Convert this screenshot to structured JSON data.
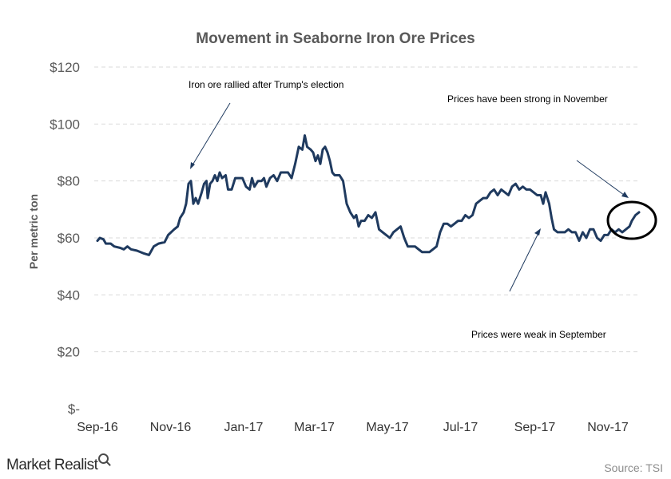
{
  "chart_data": {
    "type": "line",
    "title": "Movement in Seaborne Iron Ore Prices",
    "ylabel": "Per metric ton",
    "xlabel": "",
    "ylim": [
      0,
      120
    ],
    "y_ticks": [
      0,
      20,
      40,
      60,
      80,
      100,
      120
    ],
    "y_tick_labels": [
      "$-",
      "$20",
      "$40",
      "$60",
      "$80",
      "$100",
      "$120"
    ],
    "x_ticks": [
      "2016-09-01",
      "2016-11-01",
      "2017-01-01",
      "2017-03-01",
      "2017-05-01",
      "2017-07-01",
      "2017-09-01",
      "2017-11-01"
    ],
    "x_tick_labels": [
      "Sep-16",
      "Nov-16",
      "Jan-17",
      "Mar-17",
      "May-17",
      "Jul-17",
      "Sep-17",
      "Nov-17"
    ],
    "grid": true,
    "series": [
      {
        "color": "#1f3a5f",
        "points": [
          [
            "2016-09-01",
            59
          ],
          [
            "2016-09-03",
            60
          ],
          [
            "2016-09-06",
            59.5
          ],
          [
            "2016-09-08",
            58
          ],
          [
            "2016-09-12",
            58
          ],
          [
            "2016-09-15",
            57
          ],
          [
            "2016-09-20",
            56.5
          ],
          [
            "2016-09-23",
            56
          ],
          [
            "2016-09-26",
            57
          ],
          [
            "2016-09-29",
            56
          ],
          [
            "2016-10-04",
            55.5
          ],
          [
            "2016-10-10",
            54.5
          ],
          [
            "2016-10-14",
            54
          ],
          [
            "2016-10-18",
            57
          ],
          [
            "2016-10-22",
            58
          ],
          [
            "2016-10-27",
            58.5
          ],
          [
            "2016-10-30",
            61
          ],
          [
            "2016-11-04",
            63
          ],
          [
            "2016-11-07",
            64
          ],
          [
            "2016-11-09",
            67
          ],
          [
            "2016-11-12",
            69
          ],
          [
            "2016-11-14",
            72
          ],
          [
            "2016-11-16",
            79
          ],
          [
            "2016-11-18",
            80
          ],
          [
            "2016-11-20",
            72
          ],
          [
            "2016-11-22",
            74
          ],
          [
            "2016-11-24",
            72
          ],
          [
            "2016-11-27",
            76
          ],
          [
            "2016-11-29",
            79
          ],
          [
            "2016-12-01",
            80
          ],
          [
            "2016-12-02",
            74
          ],
          [
            "2016-12-04",
            79
          ],
          [
            "2016-12-06",
            80
          ],
          [
            "2016-12-08",
            82
          ],
          [
            "2016-12-10",
            80
          ],
          [
            "2016-12-12",
            83
          ],
          [
            "2016-12-14",
            81
          ],
          [
            "2016-12-17",
            82
          ],
          [
            "2016-12-19",
            77
          ],
          [
            "2016-12-22",
            77
          ],
          [
            "2016-12-25",
            81
          ],
          [
            "2016-12-28",
            81
          ],
          [
            "2016-12-31",
            81
          ],
          [
            "2017-01-03",
            78
          ],
          [
            "2017-01-06",
            77
          ],
          [
            "2017-01-08",
            81
          ],
          [
            "2017-01-10",
            78
          ],
          [
            "2017-01-13",
            80
          ],
          [
            "2017-01-16",
            80
          ],
          [
            "2017-01-18",
            81
          ],
          [
            "2017-01-20",
            78
          ],
          [
            "2017-01-23",
            81
          ],
          [
            "2017-01-26",
            82
          ],
          [
            "2017-01-29",
            80
          ],
          [
            "2017-02-01",
            83
          ],
          [
            "2017-02-04",
            83
          ],
          [
            "2017-02-07",
            83
          ],
          [
            "2017-02-10",
            81
          ],
          [
            "2017-02-13",
            86
          ],
          [
            "2017-02-16",
            92
          ],
          [
            "2017-02-19",
            91
          ],
          [
            "2017-02-21",
            96
          ],
          [
            "2017-02-23",
            92
          ],
          [
            "2017-02-26",
            91
          ],
          [
            "2017-02-28",
            90
          ],
          [
            "2017-03-02",
            87
          ],
          [
            "2017-03-04",
            89
          ],
          [
            "2017-03-06",
            86
          ],
          [
            "2017-03-08",
            91
          ],
          [
            "2017-03-10",
            92
          ],
          [
            "2017-03-12",
            90
          ],
          [
            "2017-03-14",
            87
          ],
          [
            "2017-03-16",
            83
          ],
          [
            "2017-03-18",
            82
          ],
          [
            "2017-03-22",
            82
          ],
          [
            "2017-03-25",
            80
          ],
          [
            "2017-03-28",
            72
          ],
          [
            "2017-03-31",
            69
          ],
          [
            "2017-04-03",
            67
          ],
          [
            "2017-04-05",
            68
          ],
          [
            "2017-04-07",
            64
          ],
          [
            "2017-04-09",
            66
          ],
          [
            "2017-04-12",
            66
          ],
          [
            "2017-04-15",
            68
          ],
          [
            "2017-04-18",
            67
          ],
          [
            "2017-04-21",
            69
          ],
          [
            "2017-04-24",
            63
          ],
          [
            "2017-04-27",
            62
          ],
          [
            "2017-04-30",
            61
          ],
          [
            "2017-05-03",
            60
          ],
          [
            "2017-05-06",
            62
          ],
          [
            "2017-05-09",
            63
          ],
          [
            "2017-05-12",
            64
          ],
          [
            "2017-05-15",
            60
          ],
          [
            "2017-05-18",
            57
          ],
          [
            "2017-05-21",
            57
          ],
          [
            "2017-05-24",
            57
          ],
          [
            "2017-05-27",
            56
          ],
          [
            "2017-05-30",
            55
          ],
          [
            "2017-06-02",
            55
          ],
          [
            "2017-06-05",
            55
          ],
          [
            "2017-06-08",
            56
          ],
          [
            "2017-06-11",
            57
          ],
          [
            "2017-06-14",
            62
          ],
          [
            "2017-06-17",
            65
          ],
          [
            "2017-06-20",
            65
          ],
          [
            "2017-06-23",
            64
          ],
          [
            "2017-06-26",
            65
          ],
          [
            "2017-06-29",
            66
          ],
          [
            "2017-07-02",
            66
          ],
          [
            "2017-07-05",
            68
          ],
          [
            "2017-07-08",
            67
          ],
          [
            "2017-07-11",
            68
          ],
          [
            "2017-07-14",
            72
          ],
          [
            "2017-07-17",
            73
          ],
          [
            "2017-07-20",
            74
          ],
          [
            "2017-07-23",
            74
          ],
          [
            "2017-07-26",
            76
          ],
          [
            "2017-07-29",
            77
          ],
          [
            "2017-08-01",
            75
          ],
          [
            "2017-08-04",
            77
          ],
          [
            "2017-08-07",
            76
          ],
          [
            "2017-08-10",
            75
          ],
          [
            "2017-08-13",
            78
          ],
          [
            "2017-08-16",
            79
          ],
          [
            "2017-08-19",
            77
          ],
          [
            "2017-08-22",
            78
          ],
          [
            "2017-08-25",
            77
          ],
          [
            "2017-08-28",
            77
          ],
          [
            "2017-08-31",
            76
          ],
          [
            "2017-09-03",
            75
          ],
          [
            "2017-09-06",
            75
          ],
          [
            "2017-09-08",
            72
          ],
          [
            "2017-09-10",
            76
          ],
          [
            "2017-09-13",
            72
          ],
          [
            "2017-09-15",
            67
          ],
          [
            "2017-09-17",
            63
          ],
          [
            "2017-09-20",
            62
          ],
          [
            "2017-09-23",
            62
          ],
          [
            "2017-09-26",
            62
          ],
          [
            "2017-09-29",
            63
          ],
          [
            "2017-10-02",
            62
          ],
          [
            "2017-10-05",
            62
          ],
          [
            "2017-10-08",
            59
          ],
          [
            "2017-10-11",
            62
          ],
          [
            "2017-10-14",
            60
          ],
          [
            "2017-10-17",
            63
          ],
          [
            "2017-10-20",
            63
          ],
          [
            "2017-10-23",
            60
          ],
          [
            "2017-10-26",
            59
          ],
          [
            "2017-10-29",
            61
          ],
          [
            "2017-11-01",
            61
          ],
          [
            "2017-11-04",
            63
          ],
          [
            "2017-11-07",
            62
          ],
          [
            "2017-11-10",
            63
          ],
          [
            "2017-11-13",
            62
          ],
          [
            "2017-11-16",
            63
          ],
          [
            "2017-11-19",
            64
          ],
          [
            "2017-11-21",
            66
          ],
          [
            "2017-11-24",
            68
          ],
          [
            "2017-11-27",
            69
          ]
        ]
      }
    ],
    "annotations": [
      "Iron ore rallied after Trump's election",
      "Prices have been strong in November",
      "Prices were weak in September"
    ],
    "source": "Source: TSI"
  },
  "brand": "Market Realist"
}
